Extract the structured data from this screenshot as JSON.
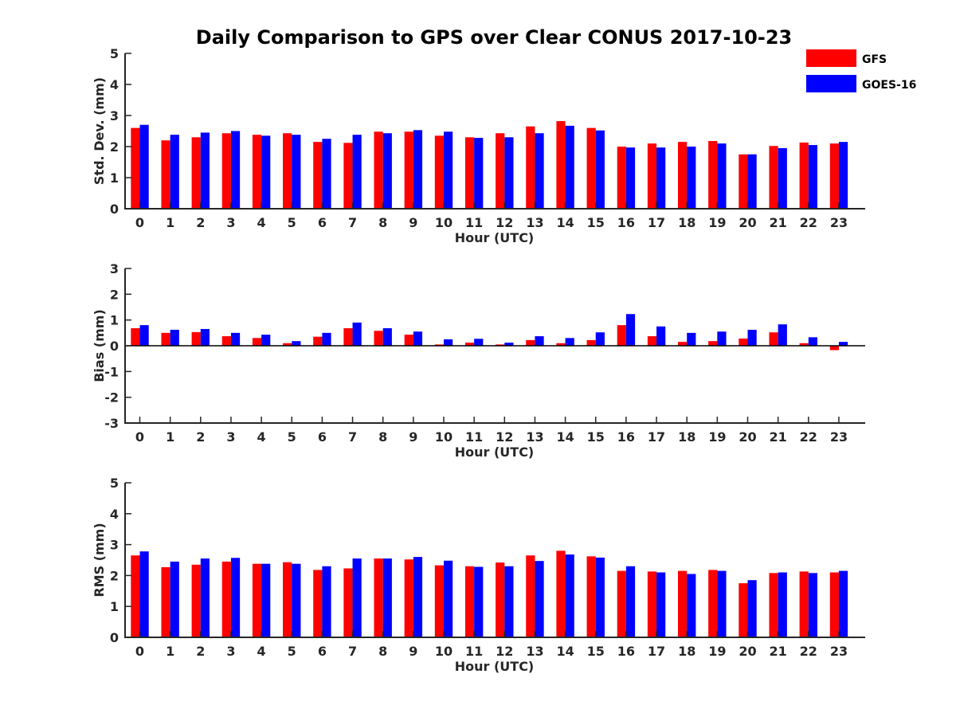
{
  "figure": {
    "title": "Daily Comparison to GPS over Clear CONUS 2017-10-23"
  },
  "legend": [
    {
      "label": "GFS",
      "color": "#ff0000"
    },
    {
      "label": "GOES-16",
      "color": "#0000ff"
    }
  ],
  "chart_data": [
    {
      "type": "bar",
      "id": "stddev",
      "title": "Daily Comparison to GPS over Clear CONUS 2017-10-23",
      "xlabel": "Hour (UTC)",
      "ylabel": "Std. Dev. (mm)",
      "ylim": [
        0,
        5
      ],
      "yticks": [
        0,
        1,
        2,
        3,
        4,
        5
      ],
      "categories": [
        "0",
        "1",
        "2",
        "3",
        "4",
        "5",
        "6",
        "7",
        "8",
        "9",
        "10",
        "11",
        "12",
        "13",
        "14",
        "15",
        "16",
        "17",
        "18",
        "19",
        "20",
        "21",
        "22",
        "23"
      ],
      "series": [
        {
          "name": "GFS",
          "color": "#ff0000",
          "values": [
            2.6,
            2.2,
            2.3,
            2.43,
            2.38,
            2.43,
            2.15,
            2.12,
            2.48,
            2.48,
            2.35,
            2.3,
            2.43,
            2.65,
            2.82,
            2.6,
            2.0,
            2.1,
            2.15,
            2.18,
            1.75,
            2.02,
            2.13,
            2.1
          ]
        },
        {
          "name": "GOES-16",
          "color": "#0000ff",
          "values": [
            2.7,
            2.38,
            2.45,
            2.5,
            2.35,
            2.38,
            2.25,
            2.38,
            2.43,
            2.53,
            2.48,
            2.28,
            2.3,
            2.43,
            2.67,
            2.52,
            1.97,
            1.97,
            2.0,
            2.1,
            1.75,
            1.95,
            2.05,
            2.15
          ]
        }
      ]
    },
    {
      "type": "bar",
      "id": "bias",
      "xlabel": "Hour (UTC)",
      "ylabel": "Bias (mm)",
      "ylim": [
        -3,
        3
      ],
      "yticks": [
        -3,
        -2,
        -1,
        0,
        1,
        2,
        3
      ],
      "categories": [
        "0",
        "1",
        "2",
        "3",
        "4",
        "5",
        "6",
        "7",
        "8",
        "9",
        "10",
        "11",
        "12",
        "13",
        "14",
        "15",
        "16",
        "17",
        "18",
        "19",
        "20",
        "21",
        "22",
        "23"
      ],
      "series": [
        {
          "name": "GFS",
          "color": "#ff0000",
          "values": [
            0.68,
            0.5,
            0.53,
            0.37,
            0.3,
            0.1,
            0.35,
            0.68,
            0.58,
            0.43,
            0.05,
            0.12,
            0.05,
            0.22,
            0.1,
            0.22,
            0.8,
            0.37,
            0.15,
            0.18,
            0.28,
            0.52,
            0.1,
            -0.17
          ]
        },
        {
          "name": "GOES-16",
          "color": "#0000ff",
          "values": [
            0.8,
            0.62,
            0.65,
            0.5,
            0.43,
            0.18,
            0.5,
            0.9,
            0.68,
            0.55,
            0.25,
            0.27,
            0.12,
            0.37,
            0.3,
            0.52,
            1.23,
            0.75,
            0.5,
            0.55,
            0.62,
            0.83,
            0.33,
            0.15
          ]
        }
      ]
    },
    {
      "type": "bar",
      "id": "rms",
      "xlabel": "Hour (UTC)",
      "ylabel": "RMS (mm)",
      "ylim": [
        0,
        5
      ],
      "yticks": [
        0,
        1,
        2,
        3,
        4,
        5
      ],
      "categories": [
        "0",
        "1",
        "2",
        "3",
        "4",
        "5",
        "6",
        "7",
        "8",
        "9",
        "10",
        "11",
        "12",
        "13",
        "14",
        "15",
        "16",
        "17",
        "18",
        "19",
        "20",
        "21",
        "22",
        "23"
      ],
      "series": [
        {
          "name": "GFS",
          "color": "#ff0000",
          "values": [
            2.65,
            2.27,
            2.35,
            2.45,
            2.38,
            2.43,
            2.18,
            2.23,
            2.55,
            2.52,
            2.33,
            2.3,
            2.42,
            2.65,
            2.8,
            2.62,
            2.15,
            2.13,
            2.15,
            2.18,
            1.75,
            2.08,
            2.13,
            2.1
          ]
        },
        {
          "name": "GOES-16",
          "color": "#0000ff",
          "values": [
            2.78,
            2.45,
            2.55,
            2.57,
            2.38,
            2.38,
            2.3,
            2.55,
            2.55,
            2.6,
            2.48,
            2.28,
            2.3,
            2.47,
            2.68,
            2.58,
            2.3,
            2.1,
            2.05,
            2.15,
            1.85,
            2.1,
            2.08,
            2.15
          ]
        }
      ]
    }
  ]
}
